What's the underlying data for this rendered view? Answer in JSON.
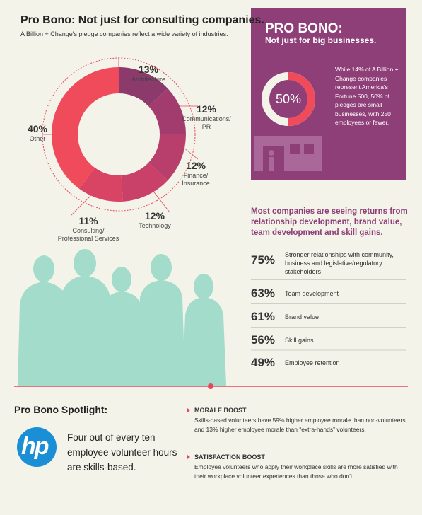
{
  "left": {
    "title": "Pro Bono: Not just for consulting companies.",
    "subtitle": "A Billion + Change's pledge companies reflect a wide variety of industries:"
  },
  "chart_data": [
    {
      "type": "donut",
      "categories": [
        "Architecture",
        "Communications/\nPR",
        "Finance/\nInsurance",
        "Technology",
        "Consulting/\nProfessional Services",
        "Other"
      ],
      "values": [
        13,
        12,
        12,
        12,
        11,
        40
      ],
      "value_labels": [
        "13%",
        "12%",
        "12%",
        "12%",
        "11%",
        "40%"
      ],
      "colors": [
        "#8c3a6c",
        "#a23c6f",
        "#b83e6c",
        "#c94068",
        "#d94364",
        "#f04b5b"
      ]
    },
    {
      "type": "ring",
      "values": [
        50
      ],
      "value_labels": [
        "50%"
      ],
      "color": "#f04b5b"
    }
  ],
  "right_box": {
    "title": "PRO BONO:",
    "subtitle": "Not just for big businesses.",
    "text": "While 14% of A Billion + Change companies represent America's Fortune 500, 50% of pledges are small businesses, with 250 employees or fewer."
  },
  "returns": {
    "heading": "Most companies are seeing returns from relationship development, brand value, team development and skill gains.",
    "items": [
      {
        "value": "75%",
        "label": "Stronger relationships with community, business and legislative/regulatory stakeholders"
      },
      {
        "value": "63%",
        "label": "Team development"
      },
      {
        "value": "61%",
        "label": "Brand value"
      },
      {
        "value": "56%",
        "label": "Skill gains"
      },
      {
        "value": "49%",
        "label": "Employee retention"
      }
    ]
  },
  "spotlight": {
    "title": "Pro Bono Spotlight:",
    "logo": "hp",
    "text": "Four out of every ten employee volunteer hours are skills-based.",
    "boosts": [
      {
        "title": "MORALE BOOST",
        "text": "Skills-based volunteers have 59% higher employee morale than non-volunteers and 13% higher employee morale than “extra-hands” volunteers."
      },
      {
        "title": "SATISFACTION BOOST",
        "text": "Employee volunteers who apply their workplace skills are more satisfied with their workplace volunteer experiences than those who don't."
      }
    ]
  }
}
